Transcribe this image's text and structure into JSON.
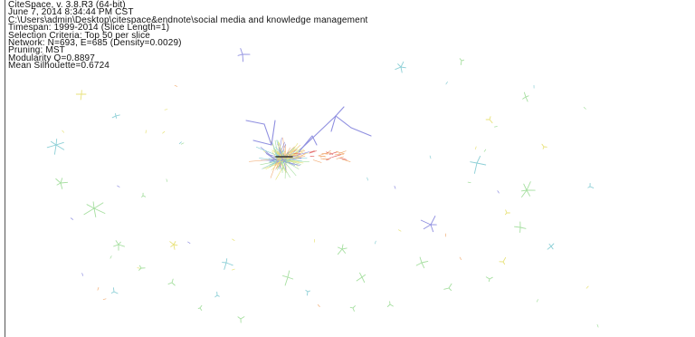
{
  "app": {
    "name": "CiteSpace",
    "info_lines": [
      "CiteSpace, v. 3.8.R3 (64-bit)",
      "June 7, 2014 8:34:44 PM CST",
      "C:\\Users\\admin\\Desktop\\citespace&endnote\\social media and knowledge management",
      "Timespan: 1999-2014 (Slice Length=1)",
      "Selection Criteria: Top 50 per slice",
      "Network: N=693, E=685 (Density=0.0029)",
      "Pruning: MST",
      "Modularity Q=0.8897",
      "Mean Silhouette=0.6724"
    ]
  },
  "colors": {
    "background": "#ffffff",
    "text": "#111111",
    "border": "#555555",
    "purple": "#8f8fe0",
    "orange": "#f2b07a",
    "green": "#a6dfa0",
    "teal": "#8ccfd6",
    "yellow": "#e8e27a",
    "red": "#e06060",
    "dark": "#333333"
  }
}
